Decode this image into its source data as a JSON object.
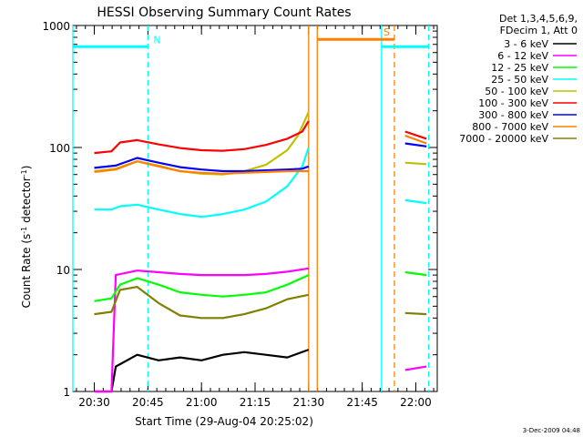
{
  "chart_data": {
    "type": "line",
    "title": "HESSI Observing Summary Count Rates",
    "xlabel": "Start Time (29-Aug-04 20:25:02)",
    "ylabel_main": "Count Rate (s",
    "ylabel_sup1": "-1",
    "ylabel_mid": " detector",
    "ylabel_sup2": "-1",
    "ylabel_end": ")",
    "y_scale": "log",
    "ylim": [
      1,
      1000
    ],
    "xlim_minutes": [
      20.4,
      22.1
    ],
    "x_ticks": [
      {
        "label": "20:30",
        "t": 20.5
      },
      {
        "label": "20:45",
        "t": 20.75
      },
      {
        "label": "21:00",
        "t": 21.0
      },
      {
        "label": "21:15",
        "t": 21.25
      },
      {
        "label": "21:30",
        "t": 21.5
      },
      {
        "label": "21:45",
        "t": 21.75
      },
      {
        "label": "22:00",
        "t": 22.0
      }
    ],
    "y_ticks": [
      {
        "label": "1",
        "v": 1
      },
      {
        "label": "10",
        "v": 10
      },
      {
        "label": "100",
        "v": 100
      },
      {
        "label": "1000",
        "v": 1000
      }
    ],
    "legend_header": [
      "Det 1,3,4,5,6,9,",
      "FDecim 1, Att 0"
    ],
    "series": [
      {
        "name": "3 - 6 keV",
        "color": "#000000",
        "segments": [
          [
            [
              20.5,
              1
            ],
            [
              20.58,
              1
            ],
            [
              20.6,
              1.6
            ],
            [
              20.7,
              2.0
            ],
            [
              20.8,
              1.8
            ],
            [
              20.9,
              1.9
            ],
            [
              21.0,
              1.8
            ],
            [
              21.1,
              2.0
            ],
            [
              21.2,
              2.1
            ],
            [
              21.3,
              2.0
            ],
            [
              21.4,
              1.9
            ],
            [
              21.5,
              2.2
            ]
          ]
        ]
      },
      {
        "name": "6 - 12 keV",
        "color": "#ff00ff",
        "segments": [
          [
            [
              20.5,
              1
            ],
            [
              20.58,
              1
            ],
            [
              20.6,
              9.0
            ],
            [
              20.7,
              9.8
            ],
            [
              20.8,
              9.5
            ],
            [
              20.9,
              9.2
            ],
            [
              21.0,
              9.0
            ],
            [
              21.1,
              9.0
            ],
            [
              21.2,
              9.0
            ],
            [
              21.3,
              9.2
            ],
            [
              21.4,
              9.6
            ],
            [
              21.5,
              10.2
            ]
          ],
          [
            [
              21.95,
              1.5
            ],
            [
              22.05,
              1.6
            ]
          ]
        ]
      },
      {
        "name": "12 - 25 keV",
        "color": "#00ff00",
        "segments": [
          [
            [
              20.5,
              5.5
            ],
            [
              20.58,
              5.8
            ],
            [
              20.62,
              7.5
            ],
            [
              20.7,
              8.5
            ],
            [
              20.8,
              7.5
            ],
            [
              20.9,
              6.5
            ],
            [
              21.0,
              6.2
            ],
            [
              21.1,
              6.0
            ],
            [
              21.2,
              6.2
            ],
            [
              21.3,
              6.5
            ],
            [
              21.4,
              7.5
            ],
            [
              21.5,
              9.0
            ]
          ],
          [
            [
              21.95,
              9.5
            ],
            [
              22.05,
              9.0
            ]
          ]
        ]
      },
      {
        "name": "25 - 50 keV",
        "color": "#00ffff",
        "segments": [
          [
            [
              20.5,
              31
            ],
            [
              20.58,
              31
            ],
            [
              20.62,
              33
            ],
            [
              20.7,
              34
            ],
            [
              20.8,
              31
            ],
            [
              20.9,
              28.5
            ],
            [
              21.0,
              27
            ],
            [
              21.1,
              28.5
            ],
            [
              21.2,
              31
            ],
            [
              21.3,
              36
            ],
            [
              21.4,
              48
            ],
            [
              21.47,
              70
            ],
            [
              21.5,
              100
            ]
          ],
          [
            [
              21.95,
              37
            ],
            [
              22.05,
              35
            ]
          ]
        ]
      },
      {
        "name": "50 - 100 keV",
        "color": "#c0c000",
        "segments": [
          [
            [
              20.5,
              64
            ],
            [
              20.6,
              67
            ],
            [
              20.7,
              77
            ],
            [
              20.8,
              71
            ],
            [
              20.9,
              64
            ],
            [
              21.0,
              61
            ],
            [
              21.1,
              60
            ],
            [
              21.2,
              64
            ],
            [
              21.3,
              72
            ],
            [
              21.4,
              95
            ],
            [
              21.45,
              125
            ],
            [
              21.5,
              195
            ]
          ],
          [
            [
              21.95,
              75
            ],
            [
              22.05,
              73
            ]
          ]
        ]
      },
      {
        "name": "100 - 300 keV",
        "color": "#ff0000",
        "segments": [
          [
            [
              20.5,
              90
            ],
            [
              20.58,
              93
            ],
            [
              20.62,
              110
            ],
            [
              20.7,
              115
            ],
            [
              20.8,
              106
            ],
            [
              20.9,
              99
            ],
            [
              21.0,
              95
            ],
            [
              21.1,
              94
            ],
            [
              21.2,
              97
            ],
            [
              21.3,
              105
            ],
            [
              21.4,
              118
            ],
            [
              21.47,
              135
            ],
            [
              21.5,
              165
            ]
          ],
          [
            [
              21.95,
              135
            ],
            [
              22.05,
              118
            ]
          ]
        ]
      },
      {
        "name": "300 - 800 keV",
        "color": "#0000ff",
        "segments": [
          [
            [
              20.5,
              68
            ],
            [
              20.6,
              71
            ],
            [
              20.7,
              82
            ],
            [
              20.8,
              75
            ],
            [
              20.9,
              69
            ],
            [
              21.0,
              66
            ],
            [
              21.1,
              64
            ],
            [
              21.2,
              64
            ],
            [
              21.3,
              65
            ],
            [
              21.4,
              66
            ],
            [
              21.47,
              67
            ],
            [
              21.5,
              70
            ]
          ],
          [
            [
              21.95,
              108
            ],
            [
              22.05,
              102
            ]
          ]
        ]
      },
      {
        "name": "800 - 7000 keV",
        "color": "#ff8000",
        "segments": [
          [
            [
              20.5,
              63
            ],
            [
              20.6,
              66
            ],
            [
              20.7,
              77
            ],
            [
              20.8,
              70
            ],
            [
              20.9,
              64
            ],
            [
              21.0,
              62
            ],
            [
              21.1,
              61
            ],
            [
              21.2,
              62
            ],
            [
              21.3,
              63
            ],
            [
              21.4,
              64
            ],
            [
              21.5,
              64
            ]
          ],
          [
            [
              21.95,
              125
            ],
            [
              22.05,
              108
            ]
          ]
        ]
      },
      {
        "name": "7000 - 20000 keV",
        "color": "#808000",
        "segments": [
          [
            [
              20.5,
              4.3
            ],
            [
              20.58,
              4.5
            ],
            [
              20.62,
              6.8
            ],
            [
              20.7,
              7.2
            ],
            [
              20.8,
              5.3
            ],
            [
              20.9,
              4.2
            ],
            [
              21.0,
              4.0
            ],
            [
              21.1,
              4.0
            ],
            [
              21.2,
              4.3
            ],
            [
              21.3,
              4.8
            ],
            [
              21.4,
              5.7
            ],
            [
              21.5,
              6.2
            ]
          ],
          [
            [
              21.95,
              4.4
            ],
            [
              22.05,
              4.3
            ]
          ]
        ]
      }
    ],
    "flag_lines": [
      {
        "label": "N",
        "color": "#00ffff",
        "segments": [
          [
            20.4,
            20.75
          ],
          [
            21.84,
            22.06
          ]
        ],
        "level": 670
      },
      {
        "label": "S",
        "color": "#ff8000",
        "segments": [
          [
            21.54,
            21.9
          ]
        ],
        "level": 770
      }
    ],
    "vertical_markers": [
      {
        "t": 20.75,
        "color": "#00ffff",
        "style": "dashed"
      },
      {
        "t": 21.5,
        "color": "#ff8000",
        "style": "solid"
      },
      {
        "t": 21.54,
        "color": "#ff8000",
        "style": "solid"
      },
      {
        "t": 21.84,
        "color": "#00ffff",
        "style": "solid"
      },
      {
        "t": 21.9,
        "color": "#ff8000",
        "style": "dashed"
      },
      {
        "t": 22.06,
        "color": "#00ffff",
        "style": "dashed"
      },
      {
        "t": 20.4,
        "color": "#00ffff",
        "style": "solid"
      }
    ]
  },
  "footer_date": "3-Dec-2009 04:48"
}
